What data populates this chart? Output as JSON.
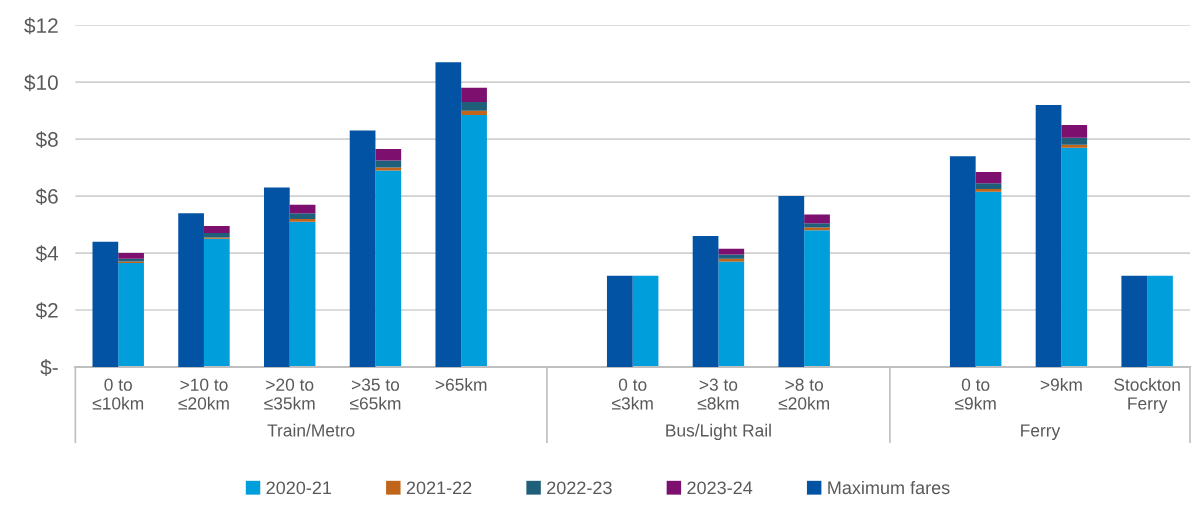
{
  "chart_data": [
    {
      "type": "bar",
      "stacked": true,
      "categories": [
        "0 to\n≤10km",
        ">10 to\n≤20km",
        ">20 to\n≤35km",
        ">35 to\n≤65km",
        ">65km",
        null,
        "0 to\n≤3km",
        ">3 to\n≤8km",
        ">8 to\n≤20km",
        null,
        "0 to\n≤9km",
        ">9km",
        "Stockton\nFerry"
      ],
      "series": [
        {
          "name": "2020-21",
          "color": "#009fdb",
          "values": [
            3.65,
            4.5,
            5.1,
            6.9,
            8.85,
            null,
            3.2,
            3.7,
            4.8,
            null,
            6.15,
            7.7,
            3.2
          ]
        },
        {
          "name": "2021-22",
          "color": "#c0651a",
          "values": [
            0.05,
            0.05,
            0.1,
            0.1,
            0.15,
            null,
            0,
            0.1,
            0.1,
            null,
            0.1,
            0.1,
            0
          ]
        },
        {
          "name": "2022-23",
          "color": "#1f5f7a",
          "values": [
            0.1,
            0.15,
            0.2,
            0.25,
            0.3,
            null,
            0,
            0.15,
            0.15,
            null,
            0.2,
            0.25,
            0
          ]
        },
        {
          "name": "2023-24",
          "color": "#7d0f6e",
          "values": [
            0.2,
            0.25,
            0.3,
            0.4,
            0.5,
            null,
            0,
            0.2,
            0.3,
            null,
            0.4,
            0.45,
            0
          ]
        }
      ],
      "ylim": [
        0,
        12
      ],
      "yticks": [
        {
          "value": 0,
          "label": "$-"
        },
        {
          "value": 2,
          "label": "$2"
        },
        {
          "value": 4,
          "label": "$4"
        },
        {
          "value": 6,
          "label": "$6"
        },
        {
          "value": 8,
          "label": "$8"
        },
        {
          "value": 10,
          "label": "$10"
        },
        {
          "value": 12,
          "label": "$12"
        }
      ],
      "grid": "y",
      "legend": "bottom",
      "annotations": [
        "Train/Metro",
        "Bus/Light Rail",
        "Ferry"
      ]
    },
    {
      "type": "bar",
      "series": [
        {
          "name": "Maximum fares",
          "color": "#0353a4",
          "values": [
            4.4,
            5.4,
            6.3,
            8.3,
            10.7,
            null,
            3.2,
            4.6,
            6.0,
            null,
            7.4,
            9.2,
            3.2
          ]
        }
      ],
      "ylim": [
        0,
        12
      ]
    }
  ]
}
